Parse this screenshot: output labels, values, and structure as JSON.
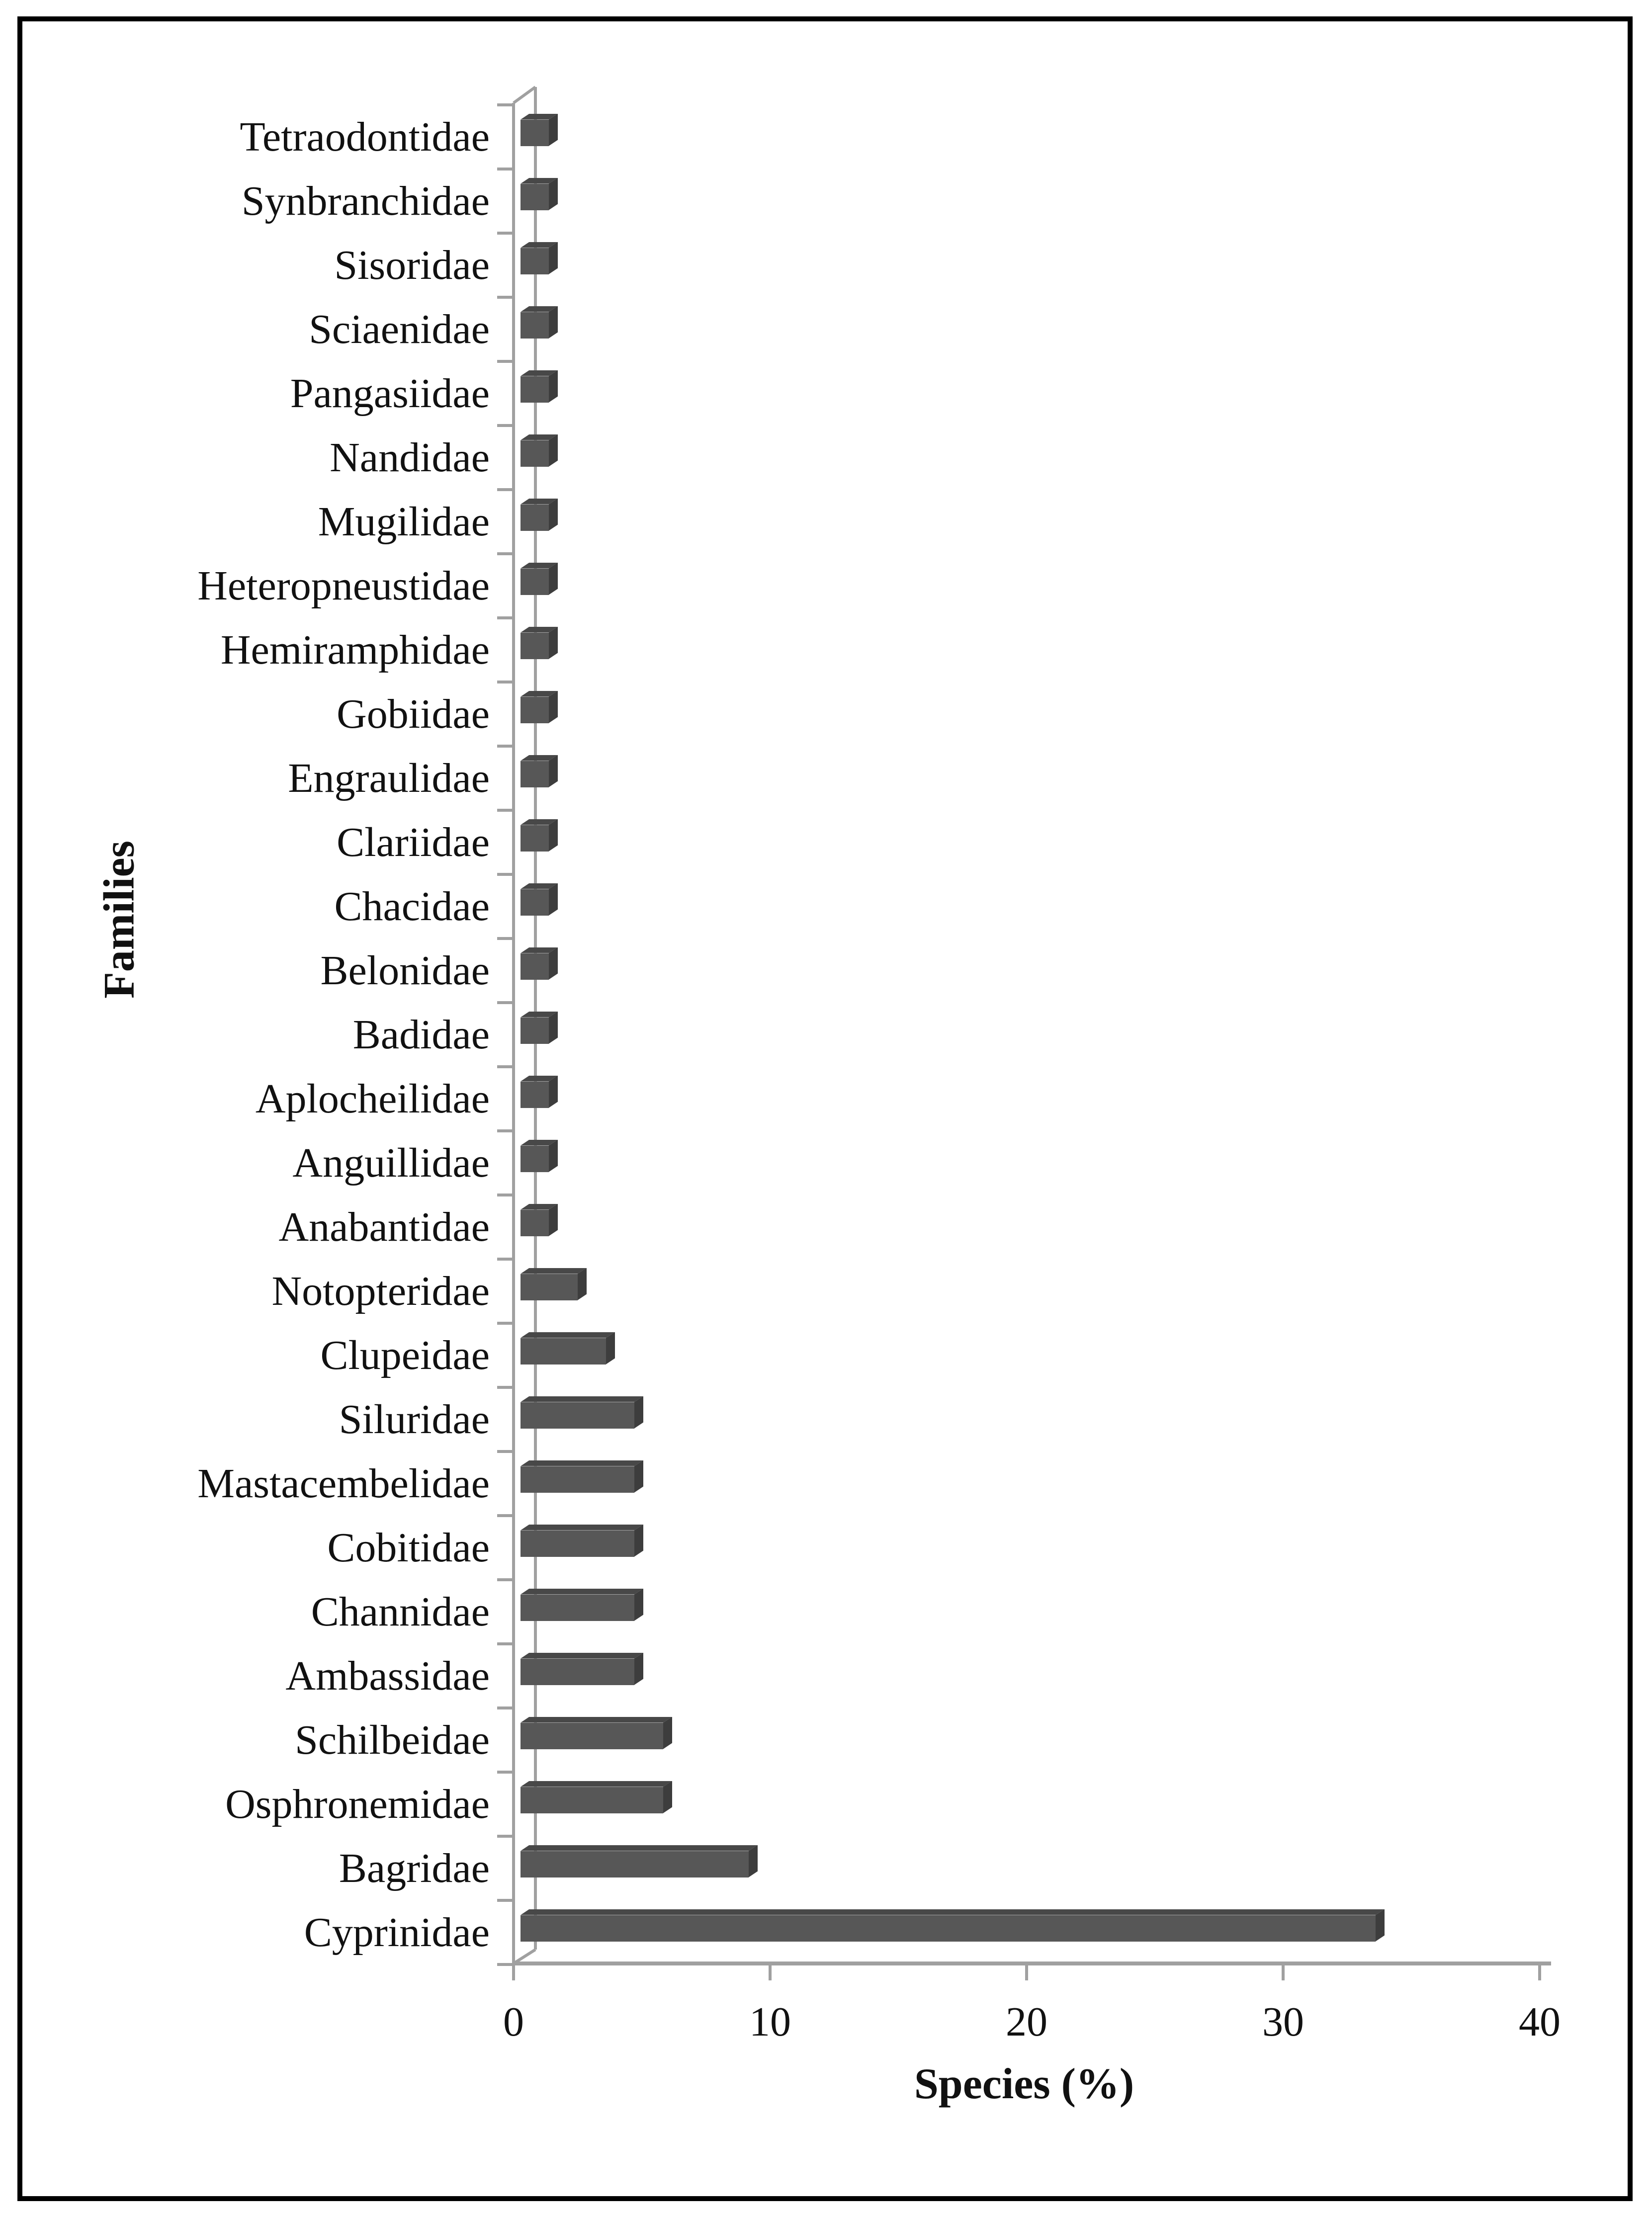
{
  "chart_data": {
    "type": "bar",
    "orientation": "horizontal",
    "style": "3d",
    "title": "",
    "xlabel": "Species (%)",
    "ylabel": "Families",
    "xlim": [
      0,
      40
    ],
    "x_ticks": [
      "0",
      "10",
      "20",
      "30",
      "40"
    ],
    "grid": false,
    "legend": "none",
    "categories": [
      "Tetraodontidae",
      "Synbranchidae",
      "Sisoridae",
      "Sciaenidae",
      "Pangasiidae",
      "Nandidae",
      "Mugilidae",
      "Heteropneustidae",
      "Hemiramphidae",
      "Gobiidae",
      "Engraulidae",
      "Clariidae",
      "Chacidae",
      "Belonidae",
      "Badidae",
      "Aplocheilidae",
      "Anguillidae",
      "Anabantidae",
      "Notopteridae",
      "Clupeidae",
      "Siluridae",
      "Mastacembelidae",
      "Cobitidae",
      "Channidae",
      "Ambassidae",
      "Schilbeidae",
      "Osphronemidae",
      "Bagridae",
      "Cyprinidae"
    ],
    "values": [
      1.11,
      1.11,
      1.11,
      1.11,
      1.11,
      1.11,
      1.11,
      1.11,
      1.11,
      1.11,
      1.11,
      1.11,
      1.11,
      1.11,
      1.11,
      1.11,
      1.11,
      1.11,
      2.22,
      3.33,
      4.44,
      4.44,
      4.44,
      4.44,
      4.44,
      5.56,
      5.56,
      8.89,
      33.33
    ],
    "colors": {
      "bar_face": "#575757",
      "bar_top": "#484848",
      "bar_side": "#3d3d3d",
      "axis_line": "#a0a0a0",
      "text": "#111111",
      "frame_border": "#000000",
      "background": "#ffffff"
    }
  }
}
